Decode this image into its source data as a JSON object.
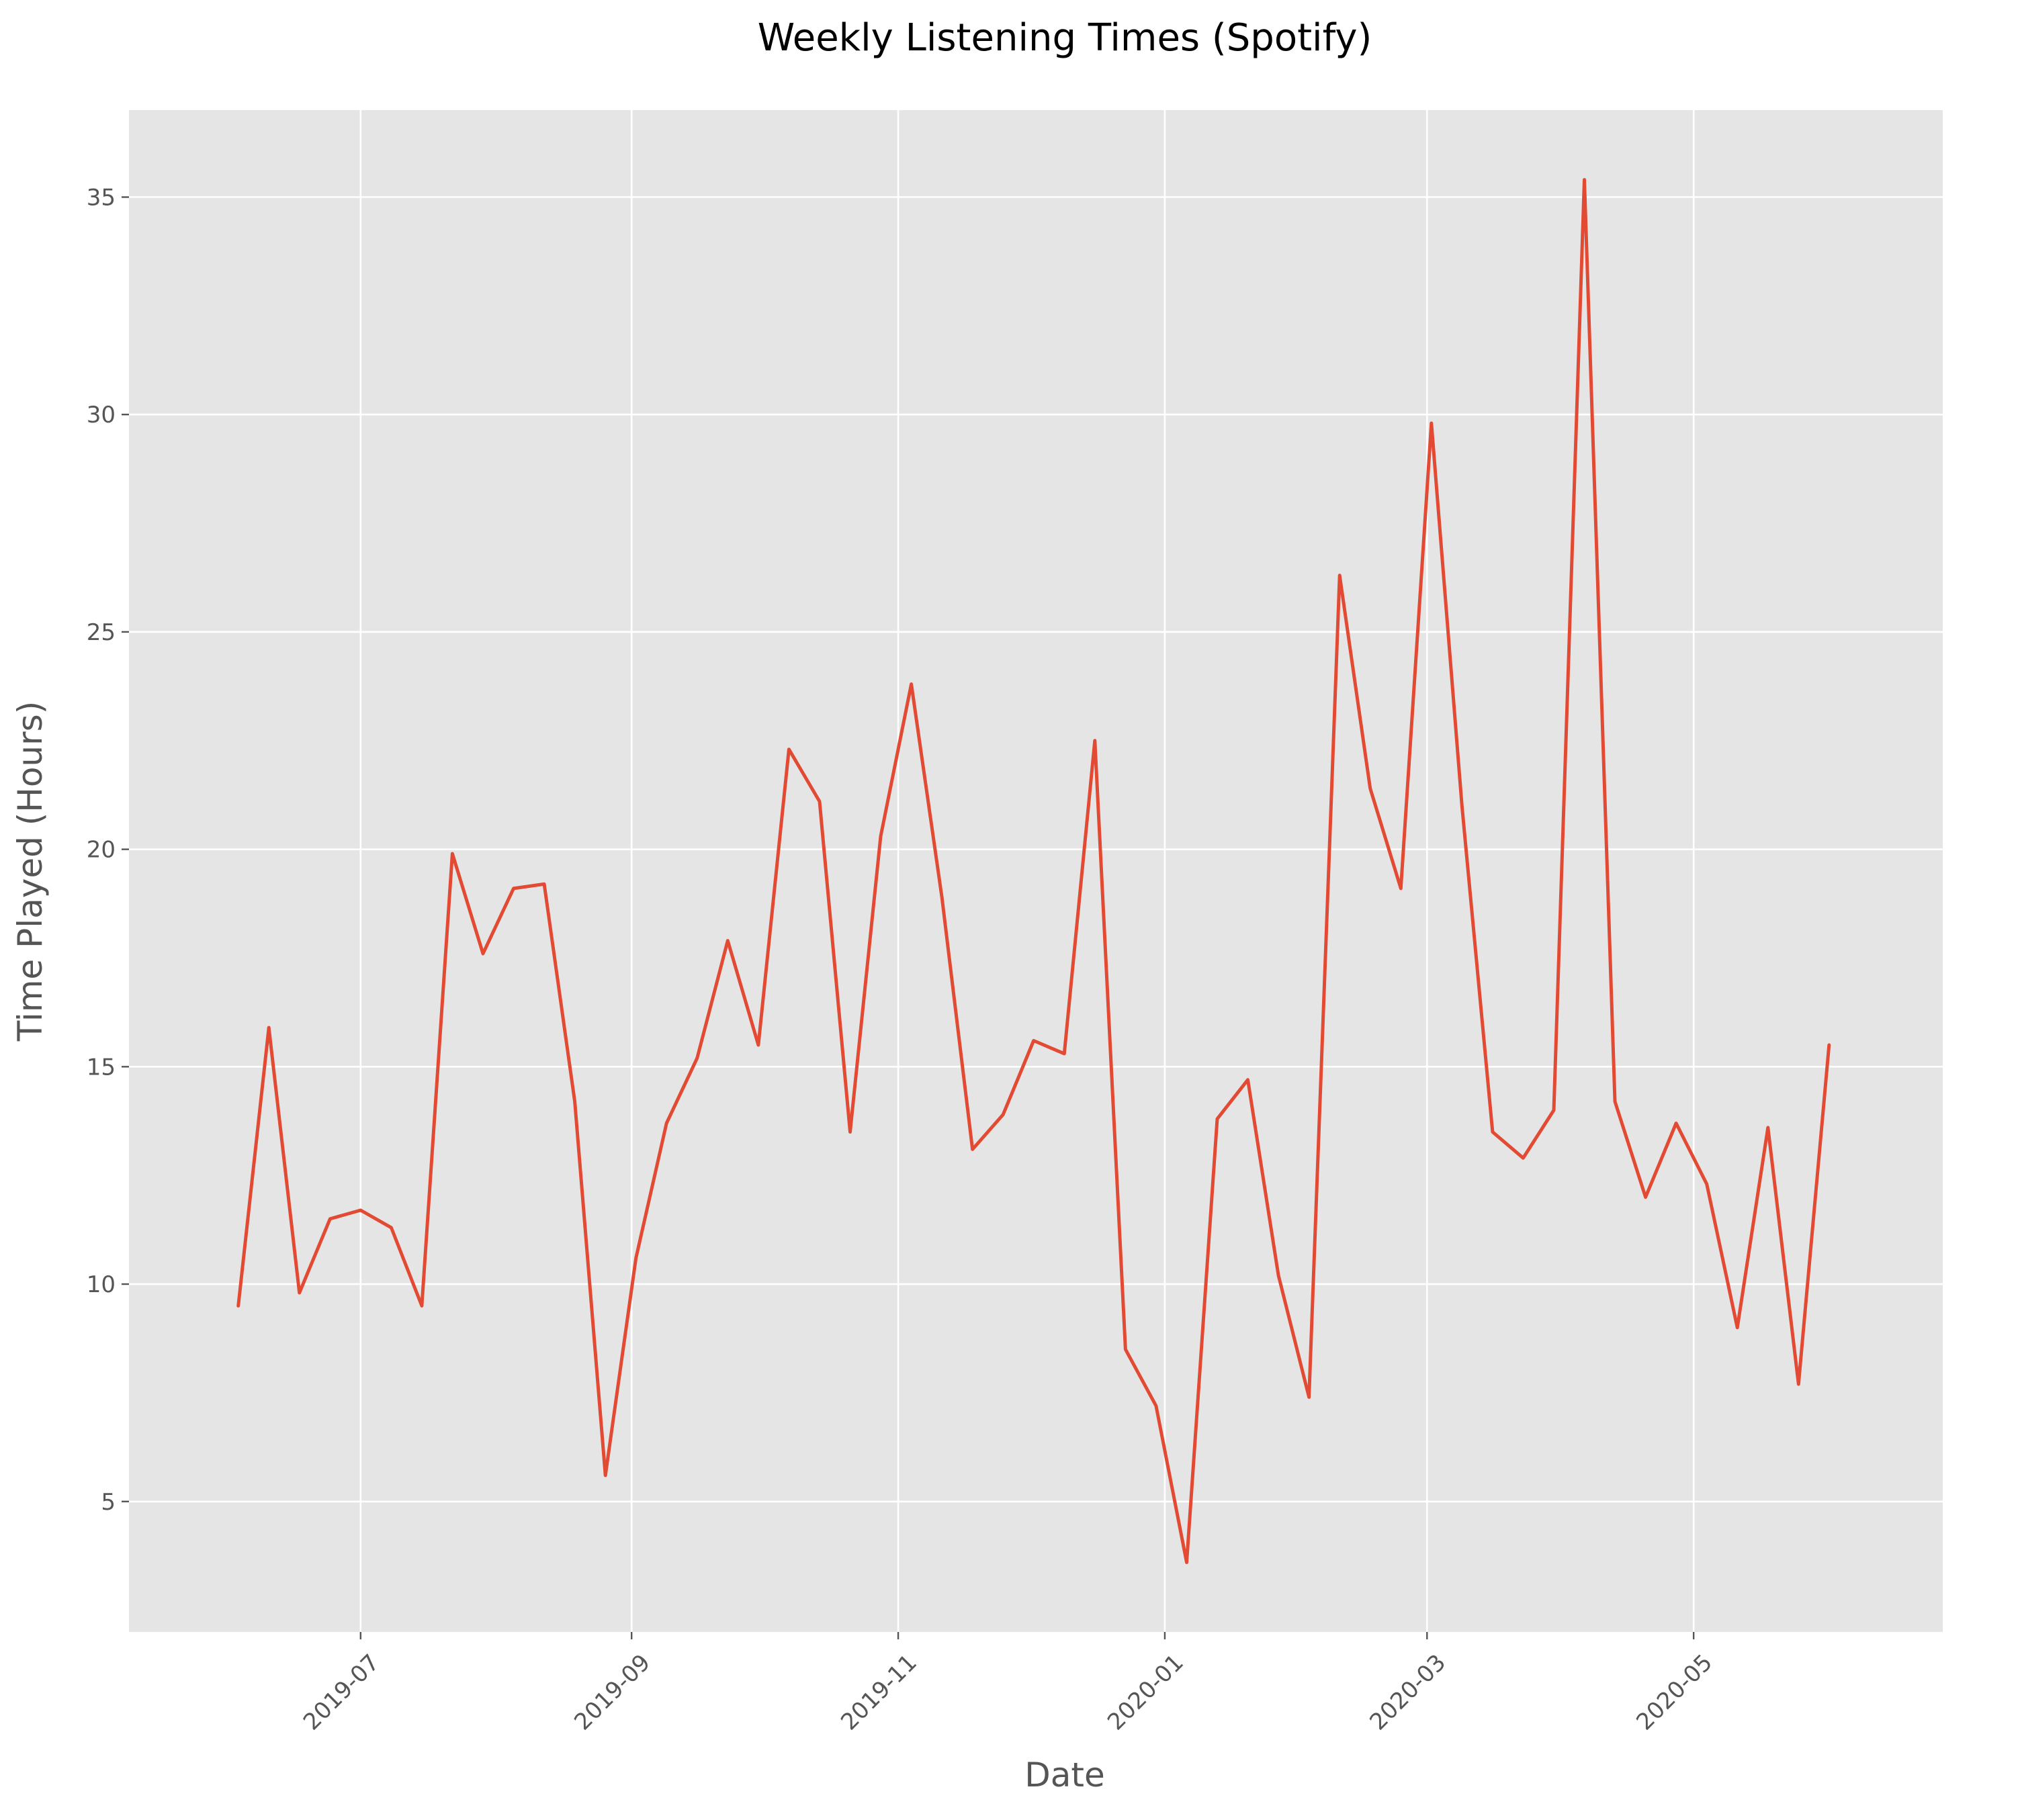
{
  "chart_data": {
    "type": "line",
    "title": "Weekly Listening Times (Spotify)",
    "xlabel": "Date",
    "ylabel": "Time Played (Hours)",
    "x_tick_labels": [
      "2019-07",
      "2019-09",
      "2019-11",
      "2020-01",
      "2020-03",
      "2020-05"
    ],
    "x_tick_dates": [
      "2019-07-01",
      "2019-09-01",
      "2019-11-01",
      "2020-01-01",
      "2020-03-01",
      "2020-05-01"
    ],
    "y_ticks": [
      5,
      10,
      15,
      20,
      25,
      30,
      35
    ],
    "xlim": [
      "2019-05-09",
      "2020-06-27"
    ],
    "ylim": [
      2.0,
      37.0
    ],
    "grid": true,
    "background_color": "#e5e5e5",
    "line_color": "#e24a33",
    "series": [
      {
        "x": [
          "2019-06-03",
          "2019-06-10",
          "2019-06-17",
          "2019-06-24",
          "2019-07-01",
          "2019-07-08",
          "2019-07-15",
          "2019-07-22",
          "2019-07-29",
          "2019-08-05",
          "2019-08-12",
          "2019-08-19",
          "2019-08-26",
          "2019-09-02",
          "2019-09-09",
          "2019-09-16",
          "2019-09-23",
          "2019-09-30",
          "2019-10-07",
          "2019-10-14",
          "2019-10-21",
          "2019-10-28",
          "2019-11-04",
          "2019-11-11",
          "2019-11-18",
          "2019-11-25",
          "2019-12-02",
          "2019-12-09",
          "2019-12-16",
          "2019-12-23",
          "2019-12-30",
          "2020-01-06",
          "2020-01-13",
          "2020-01-20",
          "2020-01-27",
          "2020-02-03",
          "2020-02-10",
          "2020-02-17",
          "2020-02-24",
          "2020-03-02",
          "2020-03-09",
          "2020-03-16",
          "2020-03-23",
          "2020-03-30",
          "2020-04-06",
          "2020-04-13",
          "2020-04-20",
          "2020-04-27",
          "2020-05-04",
          "2020-05-11",
          "2020-05-18",
          "2020-05-25",
          "2020-06-01"
        ],
        "values": [
          9.5,
          15.9,
          9.8,
          11.5,
          11.7,
          11.3,
          9.5,
          19.9,
          17.6,
          19.1,
          19.2,
          14.2,
          5.6,
          10.6,
          13.7,
          15.2,
          17.9,
          15.5,
          22.3,
          21.1,
          13.5,
          20.3,
          23.8,
          18.9,
          13.1,
          13.9,
          15.6,
          15.3,
          22.5,
          8.5,
          7.2,
          3.6,
          13.8,
          14.7,
          10.2,
          7.4,
          26.3,
          21.4,
          19.1,
          29.8,
          21.0,
          13.5,
          12.9,
          14.0,
          35.4,
          14.2,
          12.0,
          13.7,
          12.3,
          9.0,
          13.6,
          7.7,
          15.5
        ]
      }
    ]
  }
}
